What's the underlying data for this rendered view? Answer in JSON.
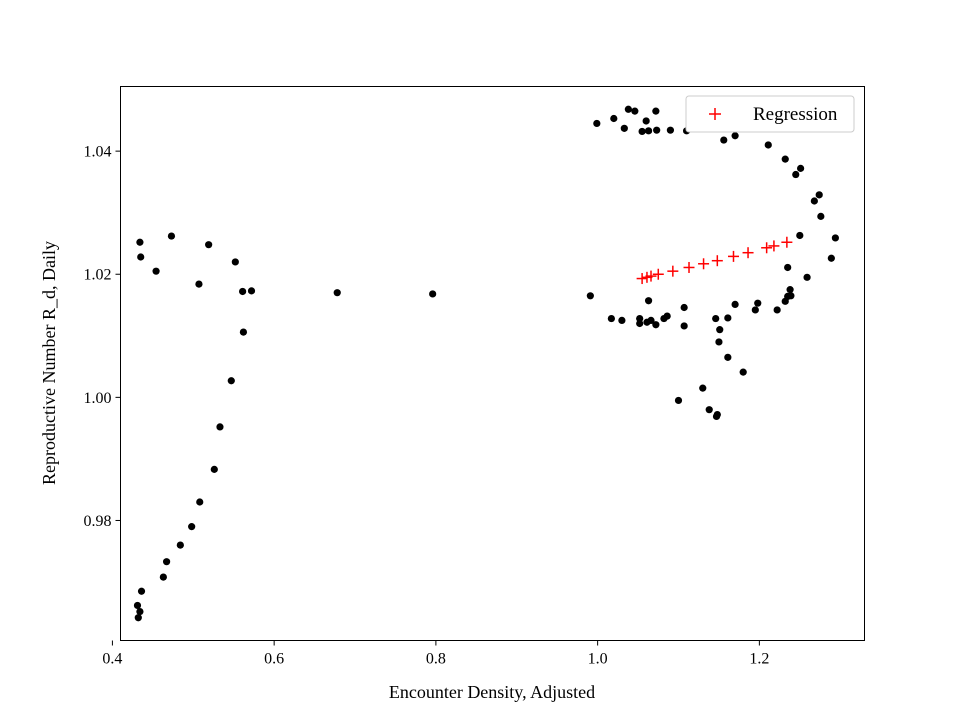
{
  "chart_data": {
    "type": "scatter",
    "title": "",
    "xlabel": "Encounter Density, Adjusted",
    "ylabel": "Reproductive Number R_d, Daily",
    "xlim": [
      0.41,
      1.33
    ],
    "ylim": [
      0.9605,
      1.0505
    ],
    "xticks": [
      0.4,
      0.6,
      0.8,
      1.0,
      1.2
    ],
    "xtick_labels": [
      "0.4",
      "0.6",
      "0.8",
      "1.0",
      "1.2"
    ],
    "yticks": [
      0.98,
      1.0,
      1.02,
      1.04
    ],
    "ytick_labels": [
      "0.98",
      "1.00",
      "1.02",
      "1.04"
    ],
    "grid": false,
    "legend": {
      "position": "top-right",
      "entries": [
        "Regression"
      ]
    },
    "series": [
      {
        "marker": "dot",
        "color": "#000000",
        "points": [
          [
            0.432,
            0.9642
          ],
          [
            0.434,
            0.9652
          ],
          [
            0.431,
            0.9662
          ],
          [
            0.436,
            0.9685
          ],
          [
            0.463,
            0.9708
          ],
          [
            0.467,
            0.9733
          ],
          [
            0.484,
            0.976
          ],
          [
            0.498,
            0.979
          ],
          [
            0.508,
            0.983
          ],
          [
            0.526,
            0.9883
          ],
          [
            0.533,
            0.9952
          ],
          [
            0.547,
            1.0027
          ],
          [
            0.562,
            1.0106
          ],
          [
            0.561,
            1.0172
          ],
          [
            0.572,
            1.0173
          ],
          [
            0.552,
            1.022
          ],
          [
            0.519,
            1.0248
          ],
          [
            0.507,
            1.0184
          ],
          [
            0.473,
            1.0262
          ],
          [
            0.454,
            1.0205
          ],
          [
            0.435,
            1.0228
          ],
          [
            0.434,
            1.0252
          ],
          [
            0.678,
            1.017
          ],
          [
            0.796,
            1.0168
          ],
          [
            0.991,
            1.0165
          ],
          [
            1.017,
            1.0128
          ],
          [
            1.03,
            1.0125
          ],
          [
            1.052,
            1.0128
          ],
          [
            1.052,
            1.012
          ],
          [
            1.061,
            1.0122
          ],
          [
            1.066,
            1.0125
          ],
          [
            1.072,
            1.0118
          ],
          [
            1.082,
            1.0128
          ],
          [
            1.086,
            1.0132
          ],
          [
            1.063,
            1.0157
          ],
          [
            1.107,
            1.0146
          ],
          [
            1.107,
            1.0116
          ],
          [
            1.146,
            1.0128
          ],
          [
            1.151,
            1.011
          ],
          [
            1.15,
            1.009
          ],
          [
            1.161,
            1.0065
          ],
          [
            1.18,
            1.0041
          ],
          [
            1.161,
            1.0129
          ],
          [
            1.17,
            1.0151
          ],
          [
            1.195,
            1.0142
          ],
          [
            1.198,
            1.0153
          ],
          [
            1.222,
            1.0142
          ],
          [
            1.232,
            1.0156
          ],
          [
            1.235,
            1.0164
          ],
          [
            1.238,
            1.0175
          ],
          [
            1.239,
            1.0165
          ],
          [
            1.235,
            1.0211
          ],
          [
            1.259,
            1.0195
          ],
          [
            1.289,
            1.0226
          ],
          [
            1.25,
            1.0263
          ],
          [
            1.294,
            1.0259
          ],
          [
            1.276,
            1.0294
          ],
          [
            1.268,
            1.0319
          ],
          [
            1.274,
            1.0329
          ],
          [
            1.251,
            1.0372
          ],
          [
            1.245,
            1.0362
          ],
          [
            1.232,
            1.0387
          ],
          [
            1.211,
            1.041
          ],
          [
            1.17,
            1.0425
          ],
          [
            1.156,
            1.0418
          ],
          [
            1.11,
            1.0433
          ],
          [
            1.09,
            1.0434
          ],
          [
            1.073,
            1.0434
          ],
          [
            1.055,
            1.0432
          ],
          [
            1.063,
            1.0433
          ],
          [
            1.033,
            1.0437
          ],
          [
            1.06,
            1.0449
          ],
          [
            0.999,
            1.0445
          ],
          [
            1.02,
            1.0453
          ],
          [
            1.038,
            1.0468
          ],
          [
            1.046,
            1.0465
          ],
          [
            1.072,
            1.0465
          ],
          [
            1.1,
            0.9995
          ],
          [
            1.13,
            1.0015
          ],
          [
            1.138,
            0.998
          ],
          [
            1.147,
            0.9969
          ],
          [
            1.148,
            0.9972
          ]
        ]
      },
      {
        "name": "Regression",
        "marker": "plus",
        "color": "#ff0000",
        "points": [
          [
            1.055,
            1.0193
          ],
          [
            1.061,
            1.0195
          ],
          [
            1.066,
            1.0197
          ],
          [
            1.075,
            1.02
          ],
          [
            1.093,
            1.0205
          ],
          [
            1.113,
            1.0211
          ],
          [
            1.131,
            1.0217
          ],
          [
            1.148,
            1.0222
          ],
          [
            1.168,
            1.0229
          ],
          [
            1.186,
            1.0235
          ],
          [
            1.209,
            1.0243
          ],
          [
            1.218,
            1.0246
          ],
          [
            1.234,
            1.0252
          ]
        ]
      }
    ]
  }
}
